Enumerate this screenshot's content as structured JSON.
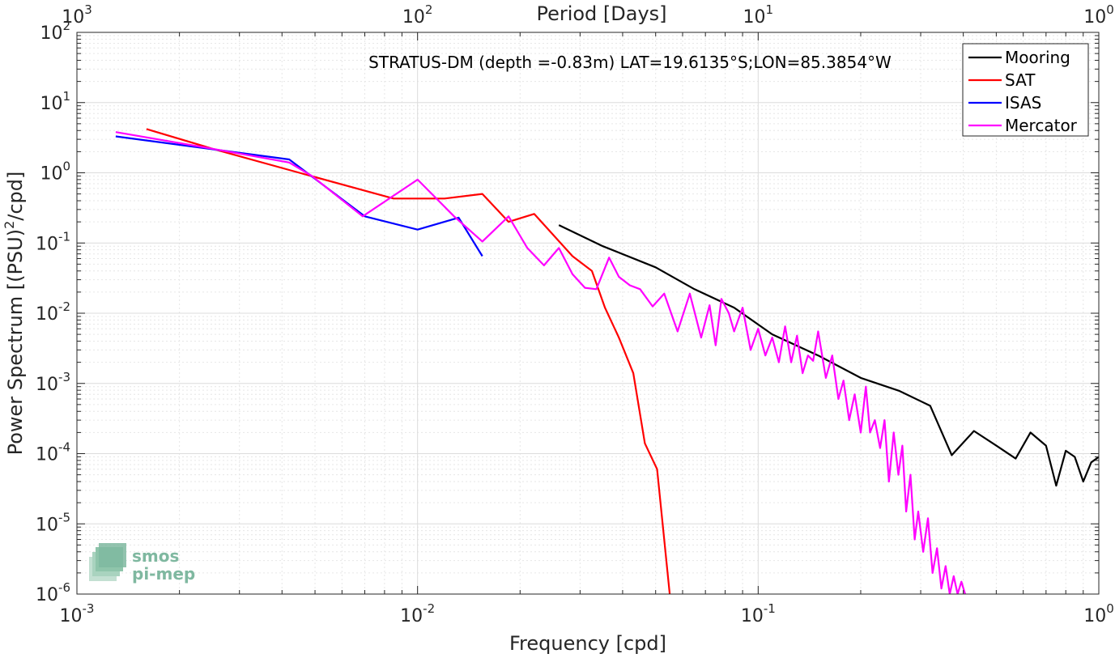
{
  "chart_data": {
    "type": "line",
    "title": "STRATUS-DM (depth =-0.83m) LAT=19.6135°S;LON=85.3854°W",
    "xlabel": "Frequency [cpd]",
    "ylabel": "Power Spectrum [(PSU)^2/cpd]",
    "ylabel_parts": {
      "base": "Power Spectrum [(PSU)",
      "sup": "2",
      "tail": "/cpd]"
    },
    "top_xlabel": "Period [Days]",
    "xscale": "log",
    "yscale": "log",
    "xlim": [
      0.001,
      1
    ],
    "ylim": [
      1e-06,
      100
    ],
    "x_ticks": [
      {
        "value": 0.001,
        "base": "10",
        "exp": "-3"
      },
      {
        "value": 0.01,
        "base": "10",
        "exp": "-2"
      },
      {
        "value": 0.1,
        "base": "10",
        "exp": "-1"
      },
      {
        "value": 1,
        "base": "10",
        "exp": "0"
      }
    ],
    "y_ticks": [
      {
        "value": 1e-06,
        "base": "10",
        "exp": "-6"
      },
      {
        "value": 1e-05,
        "base": "10",
        "exp": "-5"
      },
      {
        "value": 0.0001,
        "base": "10",
        "exp": "-4"
      },
      {
        "value": 0.001,
        "base": "10",
        "exp": "-3"
      },
      {
        "value": 0.01,
        "base": "10",
        "exp": "-2"
      },
      {
        "value": 0.1,
        "base": "10",
        "exp": "-1"
      },
      {
        "value": 1,
        "base": "10",
        "exp": "0"
      },
      {
        "value": 10,
        "base": "10",
        "exp": "1"
      },
      {
        "value": 100,
        "base": "10",
        "exp": "2"
      }
    ],
    "top_ticks": [
      {
        "period": 1000,
        "base": "10",
        "exp": "3"
      },
      {
        "period": 100,
        "base": "10",
        "exp": "2"
      },
      {
        "period": 10,
        "base": "10",
        "exp": "1"
      },
      {
        "period": 1,
        "base": "10",
        "exp": "0"
      }
    ],
    "grid": true,
    "legend_position": "top-right",
    "series": [
      {
        "name": "Mooring",
        "color": "#000000",
        "x": [
          0.026,
          0.035,
          0.05,
          0.065,
          0.085,
          0.11,
          0.15,
          0.2,
          0.26,
          0.32,
          0.37,
          0.43,
          0.5,
          0.57,
          0.63,
          0.7,
          0.75,
          0.8,
          0.85,
          0.9,
          0.95,
          1.0
        ],
        "y": [
          0.18,
          0.09,
          0.045,
          0.022,
          0.012,
          0.005,
          0.0025,
          0.0012,
          0.00078,
          0.00048,
          9.5e-05,
          0.00021,
          0.00013,
          8.5e-05,
          0.0002,
          0.00013,
          3.5e-05,
          0.00011,
          9e-05,
          4e-05,
          7.5e-05,
          9e-05
        ]
      },
      {
        "name": "SAT",
        "color": "#ff0000",
        "x": [
          0.0016,
          0.0025,
          0.0045,
          0.0085,
          0.012,
          0.0155,
          0.0185,
          0.022,
          0.0285,
          0.0325,
          0.0355,
          0.039,
          0.043,
          0.0465,
          0.0505,
          0.055
        ],
        "y": [
          4.2,
          2.2,
          1.0,
          0.43,
          0.43,
          0.5,
          0.2,
          0.26,
          0.065,
          0.04,
          0.012,
          0.0045,
          0.0014,
          0.00014,
          6e-05,
          1e-06
        ]
      },
      {
        "name": "ISAS",
        "color": "#0000ff",
        "x": [
          0.0013,
          0.0042,
          0.007,
          0.01,
          0.0132,
          0.0155
        ],
        "y": [
          3.3,
          1.55,
          0.24,
          0.155,
          0.23,
          0.065
        ]
      },
      {
        "name": "Mercator",
        "color": "#ff00ff",
        "x": [
          0.0013,
          0.0025,
          0.0042,
          0.0049,
          0.0069,
          0.01,
          0.0128,
          0.0155,
          0.0185,
          0.021,
          0.0235,
          0.026,
          0.0285,
          0.031,
          0.0335,
          0.0365,
          0.039,
          0.042,
          0.045,
          0.049,
          0.053,
          0.058,
          0.063,
          0.068,
          0.072,
          0.075,
          0.078,
          0.082,
          0.085,
          0.09,
          0.095,
          0.1,
          0.105,
          0.11,
          0.115,
          0.12,
          0.125,
          0.13,
          0.135,
          0.14,
          0.145,
          0.15,
          0.158,
          0.165,
          0.172,
          0.178,
          0.185,
          0.192,
          0.2,
          0.207,
          0.213,
          0.22,
          0.228,
          0.235,
          0.242,
          0.25,
          0.258,
          0.265,
          0.272,
          0.28,
          0.288,
          0.295,
          0.305,
          0.315,
          0.325,
          0.335,
          0.345,
          0.355,
          0.365,
          0.375,
          0.385,
          0.395,
          0.405
        ],
        "y": [
          3.8,
          2.2,
          1.4,
          0.9,
          0.24,
          0.8,
          0.24,
          0.105,
          0.24,
          0.085,
          0.048,
          0.085,
          0.036,
          0.023,
          0.022,
          0.062,
          0.033,
          0.025,
          0.022,
          0.0125,
          0.019,
          0.0055,
          0.019,
          0.0045,
          0.013,
          0.0035,
          0.016,
          0.01,
          0.0055,
          0.012,
          0.003,
          0.006,
          0.0025,
          0.0045,
          0.002,
          0.0065,
          0.002,
          0.0048,
          0.0014,
          0.0025,
          0.0021,
          0.0055,
          0.0012,
          0.0025,
          0.0006,
          0.0011,
          0.0003,
          0.0007,
          0.0002,
          0.0009,
          0.0002,
          0.0003,
          0.00012,
          0.0003,
          4e-05,
          0.0002,
          5e-05,
          0.00013,
          1.5e-05,
          5e-05,
          6e-06,
          1.5e-05,
          4e-06,
          1.2e-05,
          2e-06,
          4.5e-06,
          1.2e-06,
          2.5e-06,
          1e-06,
          1.8e-06,
          1e-06,
          1.5e-06,
          1e-06
        ]
      }
    ],
    "watermark": {
      "line1": "smos",
      "line2": "pi-mep"
    }
  }
}
